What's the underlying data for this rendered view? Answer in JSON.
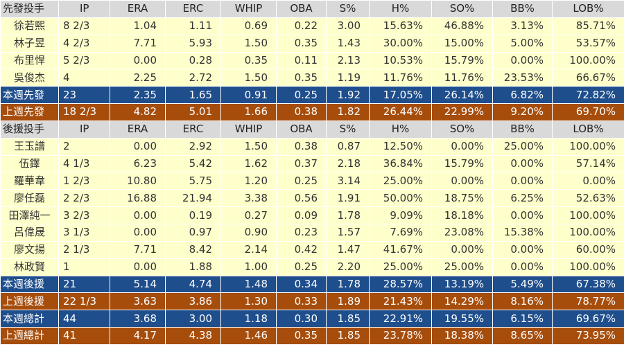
{
  "starters": {
    "header": [
      "先發投手",
      "IP",
      "ERA",
      "ERC",
      "WHIP",
      "OBA",
      "S%",
      "H%",
      "SO%",
      "BB%",
      "LOB%"
    ],
    "rows": [
      [
        "徐若熙",
        "8 2/3",
        "1.04",
        "1.11",
        "0.69",
        "0.22",
        "3.00",
        "15.63%",
        "46.88%",
        "3.13%",
        "85.71%"
      ],
      [
        "林子昱",
        "4 2/3",
        "7.71",
        "5.93",
        "1.50",
        "0.35",
        "1.43",
        "30.00%",
        "15.00%",
        "5.00%",
        "53.57%"
      ],
      [
        "布里悍",
        "5 2/3",
        "0.00",
        "0.28",
        "0.35",
        "0.11",
        "2.13",
        "10.53%",
        "15.79%",
        "0.00%",
        "100.00%"
      ],
      [
        "吳俊杰",
        "4",
        "2.25",
        "2.72",
        "1.50",
        "0.35",
        "1.19",
        "11.76%",
        "11.76%",
        "23.53%",
        "66.67%"
      ]
    ],
    "this_week": [
      "本週先發",
      "23",
      "2.35",
      "1.65",
      "0.91",
      "0.25",
      "1.92",
      "17.05%",
      "26.14%",
      "6.82%",
      "72.82%"
    ],
    "last_week": [
      "上週先發",
      "18 2/3",
      "4.82",
      "5.01",
      "1.66",
      "0.38",
      "1.82",
      "26.44%",
      "22.99%",
      "9.20%",
      "69.70%"
    ]
  },
  "relievers": {
    "header": [
      "後援投手",
      "IP",
      "ERA",
      "ERC",
      "WHIP",
      "OBA",
      "S%",
      "H%",
      "SO%",
      "BB%",
      "LOB%"
    ],
    "rows": [
      [
        "王玉譜",
        "2",
        "0.00",
        "2.92",
        "1.50",
        "0.38",
        "0.87",
        "12.50%",
        "0.00%",
        "25.00%",
        "100.00%"
      ],
      [
        "伍鐸",
        "4 1/3",
        "6.23",
        "5.42",
        "1.62",
        "0.37",
        "2.18",
        "36.84%",
        "15.79%",
        "0.00%",
        "57.14%"
      ],
      [
        "羅華韋",
        "1 2/3",
        "10.80",
        "5.75",
        "1.20",
        "0.25",
        "3.14",
        "25.00%",
        "0.00%",
        "0.00%",
        "0.00%"
      ],
      [
        "廖任磊",
        "2 2/3",
        "16.88",
        "21.94",
        "3.38",
        "0.56",
        "1.91",
        "50.00%",
        "18.75%",
        "6.25%",
        "52.63%"
      ],
      [
        "田澤純一",
        "3 2/3",
        "0.00",
        "0.19",
        "0.27",
        "0.09",
        "1.78",
        "9.09%",
        "18.18%",
        "0.00%",
        "100.00%"
      ],
      [
        "呂偉晟",
        "3 1/3",
        "0.00",
        "0.97",
        "0.90",
        "0.23",
        "1.57",
        "7.69%",
        "23.08%",
        "15.38%",
        "100.00%"
      ],
      [
        "廖文揚",
        "2 1/3",
        "7.71",
        "8.42",
        "2.14",
        "0.42",
        "1.47",
        "41.67%",
        "0.00%",
        "0.00%",
        "60.00%"
      ],
      [
        "林政賢",
        "1",
        "0.00",
        "1.88",
        "1.00",
        "0.25",
        "2.20",
        "25.00%",
        "25.00%",
        "0.00%",
        "100.00%"
      ]
    ],
    "this_week": [
      "本週後援",
      "21",
      "5.14",
      "4.74",
      "1.48",
      "0.34",
      "1.78",
      "28.57%",
      "13.19%",
      "5.49%",
      "67.38%"
    ],
    "last_week": [
      "上週後援",
      "22 1/3",
      "3.63",
      "3.86",
      "1.30",
      "0.33",
      "1.89",
      "21.43%",
      "14.29%",
      "8.16%",
      "78.77%"
    ]
  },
  "totals": {
    "this_week": [
      "本週總計",
      "44",
      "3.68",
      "3.00",
      "1.18",
      "0.30",
      "1.85",
      "22.91%",
      "19.55%",
      "6.15%",
      "69.67%"
    ],
    "last_week": [
      "上週總計",
      "41",
      "4.17",
      "4.38",
      "1.46",
      "0.35",
      "1.85",
      "23.78%",
      "18.38%",
      "8.65%",
      "73.95%"
    ]
  },
  "colors": {
    "header_bg": "#d9d9d9",
    "row_bg": "#ffffcc",
    "this_week_bg": "#1f4e8c",
    "last_week_bg": "#a64d0c"
  }
}
